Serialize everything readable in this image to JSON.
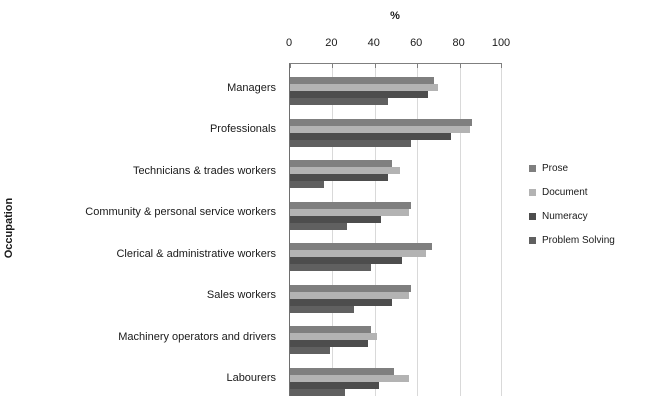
{
  "chart_data": {
    "type": "bar",
    "orientation": "horizontal",
    "title": "",
    "axis_title": "%",
    "ylabel": "Occupation",
    "xlim": [
      0,
      100
    ],
    "xticks": [
      0,
      20,
      40,
      60,
      80,
      100
    ],
    "grid": true,
    "legend_position": "right",
    "categories": [
      "Managers",
      "Professionals",
      "Technicians & trades workers",
      "Community  & personal service workers",
      "Clerical & administrative  workers",
      "Sales workers",
      "Machinery operators and drivers",
      "Labourers"
    ],
    "series": [
      {
        "name": "Prose",
        "color": "#7f7f7f",
        "values": [
          68,
          86,
          48,
          57,
          67,
          57,
          38,
          49
        ]
      },
      {
        "name": "Document",
        "color": "#b3b3b3",
        "values": [
          70,
          85,
          52,
          56,
          64,
          56,
          41,
          56
        ]
      },
      {
        "name": "Numeracy",
        "color": "#4d4d4d",
        "values": [
          65,
          76,
          46,
          43,
          53,
          48,
          37,
          42
        ]
      },
      {
        "name": "Problem Solving",
        "color": "#606060",
        "values": [
          46,
          57,
          16,
          27,
          38,
          30,
          19,
          26
        ]
      }
    ],
    "colors": {
      "axis_line": "#7f7f7f",
      "gridline": "#d9d9d9",
      "text": "#1a1a1a"
    }
  }
}
